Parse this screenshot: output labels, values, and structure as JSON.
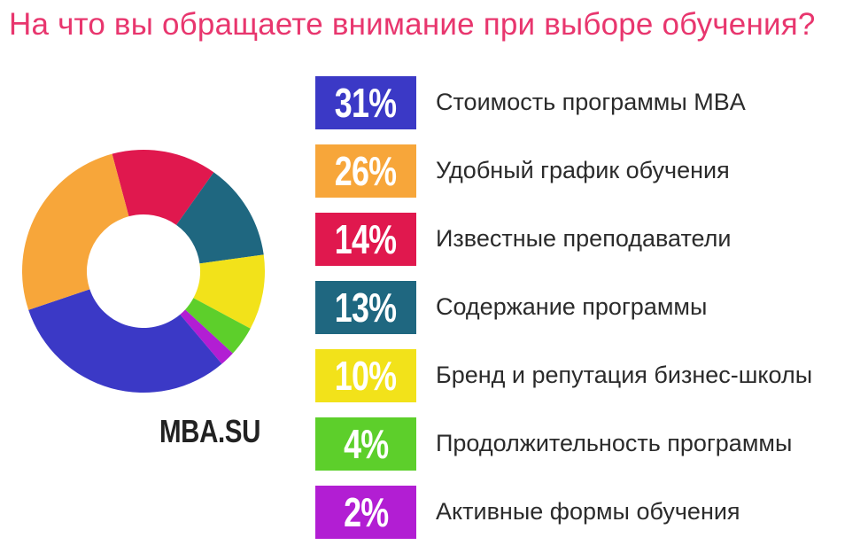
{
  "chart_data": {
    "type": "pie",
    "title": "На что вы обращаете внимание при выборе обучения?",
    "categories": [
      "Стоимость программы MBA",
      "Удобный график обучения",
      "Известные преподаватели",
      "Содержание программы",
      "Бренд и репутация бизнес-школы",
      "Продолжительность программы",
      "Активные формы обучения"
    ],
    "values": [
      31,
      26,
      14,
      13,
      10,
      4,
      2
    ],
    "value_labels": [
      "31%",
      "26%",
      "14%",
      "13%",
      "10%",
      "4%",
      "2%"
    ],
    "colors": [
      "#3b39c6",
      "#f7a63a",
      "#e0184e",
      "#1f6780",
      "#f2e21a",
      "#5dcf2b",
      "#b21ed3"
    ],
    "legend_position": "right"
  },
  "brand": "MBA.SU"
}
